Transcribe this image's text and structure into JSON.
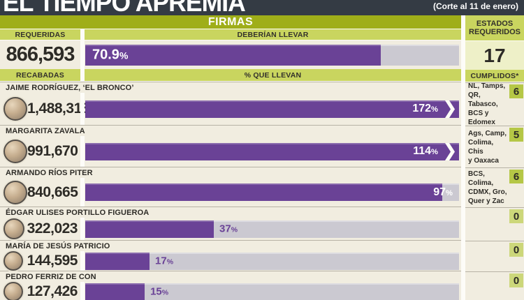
{
  "header": {
    "title": "EL TIEMPO APREMIA",
    "note": "(Corte al 11 de enero)"
  },
  "firmas_band": {
    "label": "FIRMAS"
  },
  "columns": {
    "requeridas": "REQUERIDAS",
    "deberian_llevar": "DEBERÍAN LLEVAR",
    "recabadas": "RECABADAS",
    "que_llevan": "% QUE LLEVAN",
    "estados_requeridos": "ESTADOS REQUERIDOS",
    "cumplidos": "CUMPLIDOS*"
  },
  "percent_symbol": "%",
  "required": {
    "value": "866,593",
    "pct": "70.9",
    "display_pct": 79,
    "over": false,
    "label_pos": "left",
    "states_required": "17"
  },
  "rows": [
    {
      "name": "JAIME RODRÍGUEZ, ‘EL BRONCO’",
      "value": "1,488,318",
      "pct": "172",
      "display_pct": 100,
      "over": true,
      "label_pos": "inside",
      "states": "NL, Tamps,\nQR, Tabasco,\nBCS y Edomex",
      "fulfilled": "6"
    },
    {
      "name": "MARGARITA ZAVALA",
      "value": "991,670",
      "pct": "114",
      "display_pct": 100,
      "over": true,
      "label_pos": "inside",
      "states": "Ags, Camp,\nColima, Chis\ny Oaxaca",
      "fulfilled": "5"
    },
    {
      "name": "ARMANDO RÍOS PITER",
      "value": "840,665",
      "pct": "97",
      "display_pct": 95.5,
      "over": false,
      "label_pos": "inside",
      "states": "BCS, Colima,\nCDMX, Gro,\nQuer y Zac",
      "fulfilled": "6"
    },
    {
      "name": "ÉDGAR ULISES PORTILLO FIGUEROA",
      "value": "322,023",
      "pct": "37",
      "display_pct": 34.4,
      "over": false,
      "label_pos": "outside",
      "states": "",
      "fulfilled": "0"
    },
    {
      "name": "MARÍA DE JESÚS PATRICIO",
      "value": "144,595",
      "pct": "17",
      "display_pct": 17.2,
      "over": false,
      "label_pos": "outside",
      "states": "",
      "fulfilled": "0"
    },
    {
      "name": "PEDRO FERRIZ DE CON",
      "value": "127,426",
      "pct": "15",
      "display_pct": 15.9,
      "over": false,
      "label_pos": "outside",
      "states": "",
      "fulfilled": "0"
    }
  ],
  "colors": {
    "header_dark": "#343b44",
    "olive_green": "#9fae19",
    "band_green": "#c9d55f",
    "pale_green": "#eef0c8",
    "cream_bg": "#f1ede0",
    "accent_purple": "#6a4296",
    "track_gray": "#cbc9d1",
    "badge_green": "#b5c746",
    "badge_green_light": "#ccd77a"
  },
  "chart_data": {
    "type": "bar",
    "title": "EL TIEMPO APREMIA — FIRMAS (Corte al 11 de enero)",
    "xlabel": "% que llevan",
    "ylabel": "",
    "xlim": [
      0,
      100
    ],
    "unit": "%",
    "required_signatures": 866593,
    "should_have_pct": 70.9,
    "states_required": 17,
    "categories": [
      "Jaime Rodríguez, ‘El Bronco’",
      "Margarita Zavala",
      "Armando Ríos Piter",
      "Édgar Ulises Portillo Figueroa",
      "María de Jesús Patricio",
      "Pedro Ferriz de Con"
    ],
    "series": [
      {
        "name": "Firmas recabadas",
        "values": [
          1488318,
          991670,
          840665,
          322023,
          144595,
          127426
        ]
      },
      {
        "name": "% que llevan",
        "values": [
          172,
          114,
          97,
          37,
          17,
          15
        ]
      },
      {
        "name": "Estados cumplidos",
        "values": [
          6,
          5,
          6,
          0,
          0,
          0
        ]
      }
    ],
    "legend": [
      "Recabadas",
      "% que llevan",
      "Cumplidos"
    ],
    "grid": false
  }
}
